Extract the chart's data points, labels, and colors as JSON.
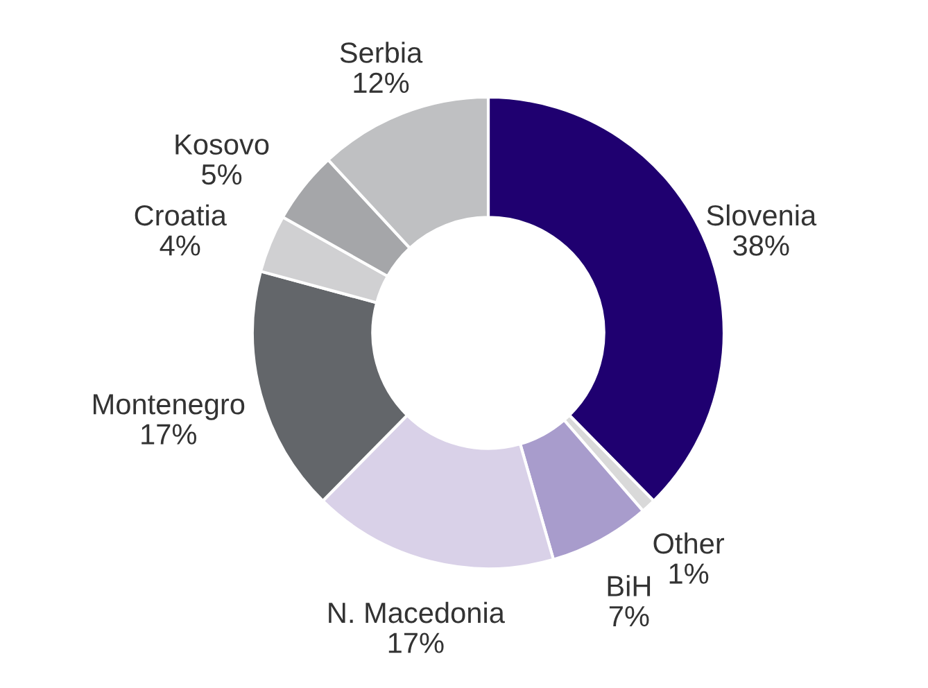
{
  "chart_data": {
    "type": "donut",
    "categories": [
      "Slovenia",
      "Other",
      "BiH",
      "N. Macedonia",
      "Montenegro",
      "Croatia",
      "Kosovo",
      "Serbia"
    ],
    "values": [
      38,
      1,
      7,
      17,
      17,
      4,
      5,
      12
    ],
    "value_labels": [
      "38%",
      "1%",
      "7%",
      "17%",
      "17%",
      "4%",
      "5%",
      "12%"
    ],
    "colors": [
      "#1f0070",
      "#d9d9d9",
      "#a89ccc",
      "#d9d1e8",
      "#63666a",
      "#d0d0d2",
      "#a5a6a9",
      "#bfc0c2"
    ],
    "legend": false
  }
}
